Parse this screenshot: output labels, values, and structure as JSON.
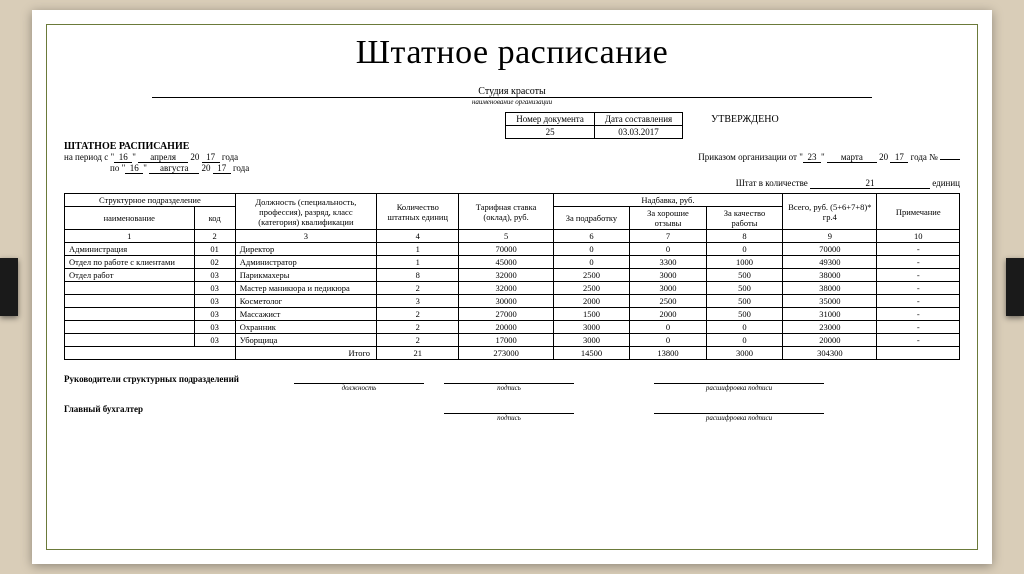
{
  "title": "Штатное расписание",
  "org_name": "Студия красоты",
  "org_caption": "наименование организации",
  "doc_box": {
    "h1": "Номер документа",
    "h2": "Дата составления",
    "num": "25",
    "date": "03.03.2017"
  },
  "approved": "УТВЕРЖДЕНО",
  "form_title": "ШТАТНОЕ РАСПИСАНИЕ",
  "period": {
    "label_from": "на  период с",
    "label_to": "по",
    "d1": "16",
    "m1": "апреля",
    "y1a": "20",
    "y1b": "17",
    "yr": "года",
    "d2": "16",
    "m2": "августа",
    "y2a": "20",
    "y2b": "17"
  },
  "order": {
    "prefix": "Приказом организации от",
    "d": "23",
    "m": "марта",
    "ya": "20",
    "yb": "17",
    "suffix": "года №"
  },
  "staff": {
    "label_a": "Штат в количестве",
    "count": "21",
    "label_b": "единиц"
  },
  "headers": {
    "unit": "Структурное подразделение",
    "name": "наименование",
    "code": "код",
    "position": "Должность (специальность, профессия), разряд, класс (категория) квалификации",
    "count": "Количество штатных единиц",
    "rate": "Тарифная ставка (оклад), руб.",
    "allow": "Надбавка, руб.",
    "a1": "За подработку",
    "a2": "За хорошие отзывы",
    "a3": "За качество работы",
    "total": "Всего, руб. (5+6+7+8)* гр.4",
    "note": "Примечание"
  },
  "colnums": [
    "1",
    "2",
    "3",
    "4",
    "5",
    "6",
    "7",
    "8",
    "9",
    "10"
  ],
  "rows": [
    {
      "name": "Администрация",
      "code": "01",
      "pos": "Директор",
      "cnt": "1",
      "rate": "70000",
      "a1": "0",
      "a2": "0",
      "a3": "0",
      "sum": "70000",
      "note": "-"
    },
    {
      "name": "Отдел по работе с клиентами",
      "code": "02",
      "pos": "Администратор",
      "cnt": "1",
      "rate": "45000",
      "a1": "0",
      "a2": "3300",
      "a3": "1000",
      "sum": "49300",
      "note": "-"
    },
    {
      "name": "Отдел работ",
      "code": "03",
      "pos": "Парикмахеры",
      "cnt": "8",
      "rate": "32000",
      "a1": "2500",
      "a2": "3000",
      "a3": "500",
      "sum": "38000",
      "note": "-"
    },
    {
      "name": "",
      "code": "03",
      "pos": "Мастер маникюра и педикюра",
      "cnt": "2",
      "rate": "32000",
      "a1": "2500",
      "a2": "3000",
      "a3": "500",
      "sum": "38000",
      "note": "-"
    },
    {
      "name": "",
      "code": "03",
      "pos": "Косметолог",
      "cnt": "3",
      "rate": "30000",
      "a1": "2000",
      "a2": "2500",
      "a3": "500",
      "sum": "35000",
      "note": "-"
    },
    {
      "name": "",
      "code": "03",
      "pos": "Массажист",
      "cnt": "2",
      "rate": "27000",
      "a1": "1500",
      "a2": "2000",
      "a3": "500",
      "sum": "31000",
      "note": "-"
    },
    {
      "name": "",
      "code": "03",
      "pos": "Охранник",
      "cnt": "2",
      "rate": "20000",
      "a1": "3000",
      "a2": "0",
      "a3": "0",
      "sum": "23000",
      "note": "-"
    },
    {
      "name": "",
      "code": "03",
      "pos": "Уборщица",
      "cnt": "2",
      "rate": "17000",
      "a1": "3000",
      "a2": "0",
      "a3": "0",
      "sum": "20000",
      "note": "-"
    }
  ],
  "totals": {
    "label": "Итого",
    "cnt": "21",
    "rate": "273000",
    "a1": "14500",
    "a2": "13800",
    "a3": "3000",
    "sum": "304300",
    "note": ""
  },
  "sig": {
    "heads": "Руководители структурных подразделений",
    "chief": "Главный бухгалтер",
    "c_pos": "должность",
    "c_sign": "подпись",
    "c_dec": "расшифровка подписи"
  }
}
